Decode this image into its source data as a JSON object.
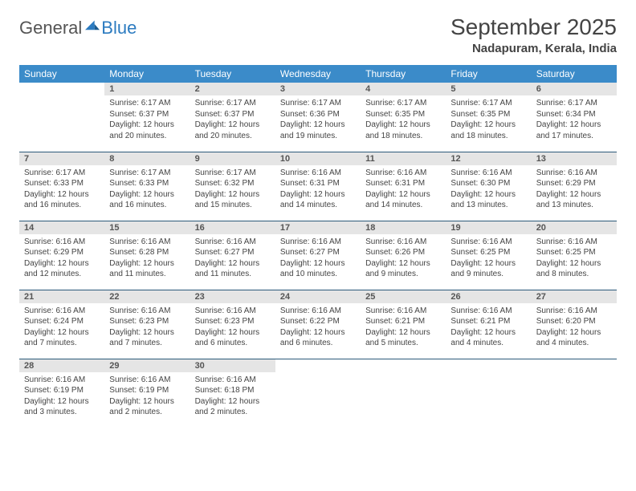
{
  "brand": {
    "name_a": "General",
    "name_b": "Blue"
  },
  "title": "September 2025",
  "location": "Nadapuram, Kerala, India",
  "colors": {
    "header_bg": "#3b8bc9",
    "header_text": "#ffffff",
    "daynum_bg": "#e5e5e5",
    "row_border": "#2c5a7a",
    "brand_blue": "#2c7bc0"
  },
  "day_headers": [
    "Sunday",
    "Monday",
    "Tuesday",
    "Wednesday",
    "Thursday",
    "Friday",
    "Saturday"
  ],
  "weeks": [
    [
      {
        "n": "",
        "sr": "",
        "ss": "",
        "dl": ""
      },
      {
        "n": "1",
        "sr": "6:17 AM",
        "ss": "6:37 PM",
        "dl": "12 hours and 20 minutes."
      },
      {
        "n": "2",
        "sr": "6:17 AM",
        "ss": "6:37 PM",
        "dl": "12 hours and 20 minutes."
      },
      {
        "n": "3",
        "sr": "6:17 AM",
        "ss": "6:36 PM",
        "dl": "12 hours and 19 minutes."
      },
      {
        "n": "4",
        "sr": "6:17 AM",
        "ss": "6:35 PM",
        "dl": "12 hours and 18 minutes."
      },
      {
        "n": "5",
        "sr": "6:17 AM",
        "ss": "6:35 PM",
        "dl": "12 hours and 18 minutes."
      },
      {
        "n": "6",
        "sr": "6:17 AM",
        "ss": "6:34 PM",
        "dl": "12 hours and 17 minutes."
      }
    ],
    [
      {
        "n": "7",
        "sr": "6:17 AM",
        "ss": "6:33 PM",
        "dl": "12 hours and 16 minutes."
      },
      {
        "n": "8",
        "sr": "6:17 AM",
        "ss": "6:33 PM",
        "dl": "12 hours and 16 minutes."
      },
      {
        "n": "9",
        "sr": "6:17 AM",
        "ss": "6:32 PM",
        "dl": "12 hours and 15 minutes."
      },
      {
        "n": "10",
        "sr": "6:16 AM",
        "ss": "6:31 PM",
        "dl": "12 hours and 14 minutes."
      },
      {
        "n": "11",
        "sr": "6:16 AM",
        "ss": "6:31 PM",
        "dl": "12 hours and 14 minutes."
      },
      {
        "n": "12",
        "sr": "6:16 AM",
        "ss": "6:30 PM",
        "dl": "12 hours and 13 minutes."
      },
      {
        "n": "13",
        "sr": "6:16 AM",
        "ss": "6:29 PM",
        "dl": "12 hours and 13 minutes."
      }
    ],
    [
      {
        "n": "14",
        "sr": "6:16 AM",
        "ss": "6:29 PM",
        "dl": "12 hours and 12 minutes."
      },
      {
        "n": "15",
        "sr": "6:16 AM",
        "ss": "6:28 PM",
        "dl": "12 hours and 11 minutes."
      },
      {
        "n": "16",
        "sr": "6:16 AM",
        "ss": "6:27 PM",
        "dl": "12 hours and 11 minutes."
      },
      {
        "n": "17",
        "sr": "6:16 AM",
        "ss": "6:27 PM",
        "dl": "12 hours and 10 minutes."
      },
      {
        "n": "18",
        "sr": "6:16 AM",
        "ss": "6:26 PM",
        "dl": "12 hours and 9 minutes."
      },
      {
        "n": "19",
        "sr": "6:16 AM",
        "ss": "6:25 PM",
        "dl": "12 hours and 9 minutes."
      },
      {
        "n": "20",
        "sr": "6:16 AM",
        "ss": "6:25 PM",
        "dl": "12 hours and 8 minutes."
      }
    ],
    [
      {
        "n": "21",
        "sr": "6:16 AM",
        "ss": "6:24 PM",
        "dl": "12 hours and 7 minutes."
      },
      {
        "n": "22",
        "sr": "6:16 AM",
        "ss": "6:23 PM",
        "dl": "12 hours and 7 minutes."
      },
      {
        "n": "23",
        "sr": "6:16 AM",
        "ss": "6:23 PM",
        "dl": "12 hours and 6 minutes."
      },
      {
        "n": "24",
        "sr": "6:16 AM",
        "ss": "6:22 PM",
        "dl": "12 hours and 6 minutes."
      },
      {
        "n": "25",
        "sr": "6:16 AM",
        "ss": "6:21 PM",
        "dl": "12 hours and 5 minutes."
      },
      {
        "n": "26",
        "sr": "6:16 AM",
        "ss": "6:21 PM",
        "dl": "12 hours and 4 minutes."
      },
      {
        "n": "27",
        "sr": "6:16 AM",
        "ss": "6:20 PM",
        "dl": "12 hours and 4 minutes."
      }
    ],
    [
      {
        "n": "28",
        "sr": "6:16 AM",
        "ss": "6:19 PM",
        "dl": "12 hours and 3 minutes."
      },
      {
        "n": "29",
        "sr": "6:16 AM",
        "ss": "6:19 PM",
        "dl": "12 hours and 2 minutes."
      },
      {
        "n": "30",
        "sr": "6:16 AM",
        "ss": "6:18 PM",
        "dl": "12 hours and 2 minutes."
      },
      {
        "n": "",
        "sr": "",
        "ss": "",
        "dl": ""
      },
      {
        "n": "",
        "sr": "",
        "ss": "",
        "dl": ""
      },
      {
        "n": "",
        "sr": "",
        "ss": "",
        "dl": ""
      },
      {
        "n": "",
        "sr": "",
        "ss": "",
        "dl": ""
      }
    ]
  ],
  "labels": {
    "sunrise": "Sunrise:",
    "sunset": "Sunset:",
    "daylight": "Daylight:"
  }
}
